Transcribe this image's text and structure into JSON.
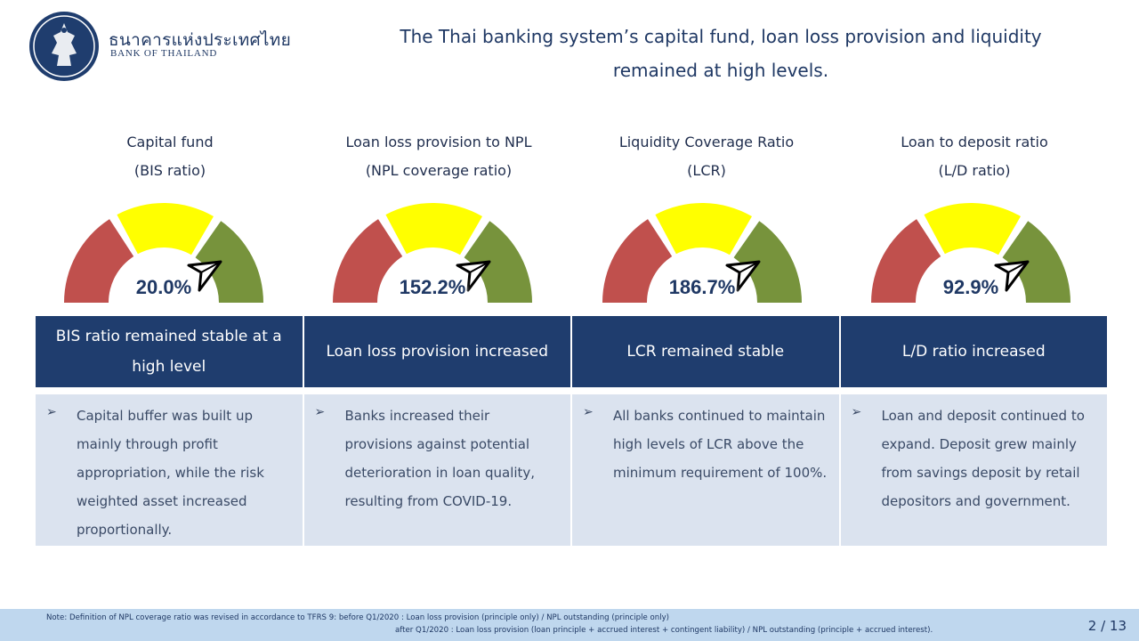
{
  "organization": {
    "name_thai": "ธนาคารแห่งประเทศไทย",
    "name_en": "BANK OF THAILAND"
  },
  "headline": "The Thai banking system’s capital fund, loan loss provision and liquidity remained at high levels.",
  "metrics": [
    {
      "title": "Capital fund",
      "subtitle": "(BIS ratio)",
      "value": "20.0%",
      "needle_zone": "green",
      "header": "BIS ratio remained stable at a high level",
      "description": "Capital buffer was built up mainly through profit appropriation, while the risk weighted asset increased proportionally."
    },
    {
      "title": "Loan loss provision to NPL",
      "subtitle": "(NPL coverage ratio)",
      "value": "152.2%",
      "needle_zone": "green",
      "header": "Loan loss provision increased",
      "description": "Banks increased their provisions against potential deterioration in loan quality, resulting from COVID-19."
    },
    {
      "title": "Liquidity Coverage Ratio",
      "subtitle": "(LCR)",
      "value": "186.7%",
      "needle_zone": "green",
      "header": "LCR remained  stable",
      "description": "All banks continued to maintain high levels  of LCR above the minimum requirement of 100%."
    },
    {
      "title": "Loan to deposit ratio",
      "subtitle": "(L/D ratio)",
      "value": "92.9%",
      "needle_zone": "green",
      "header": "L/D ratio increased",
      "description": "Loan and deposit continued to expand. Deposit grew mainly from savings deposit by retail depositors and government."
    }
  ],
  "gauge_colors": {
    "red": "#c0504d",
    "yellow": "#ffff00",
    "green": "#77933c"
  },
  "footer": {
    "note_line1": "Note: Definition of NPL coverage ratio was revised in accordance to TFRS 9: before Q1/2020 : Loan loss provision (principle only) / NPL outstanding (principle only)",
    "note_line2": "after Q1/2020 : Loan loss provision (loan principle + accrued interest + contingent liability) / NPL outstanding (principle + accrued interest).",
    "page": "2 / 13"
  }
}
